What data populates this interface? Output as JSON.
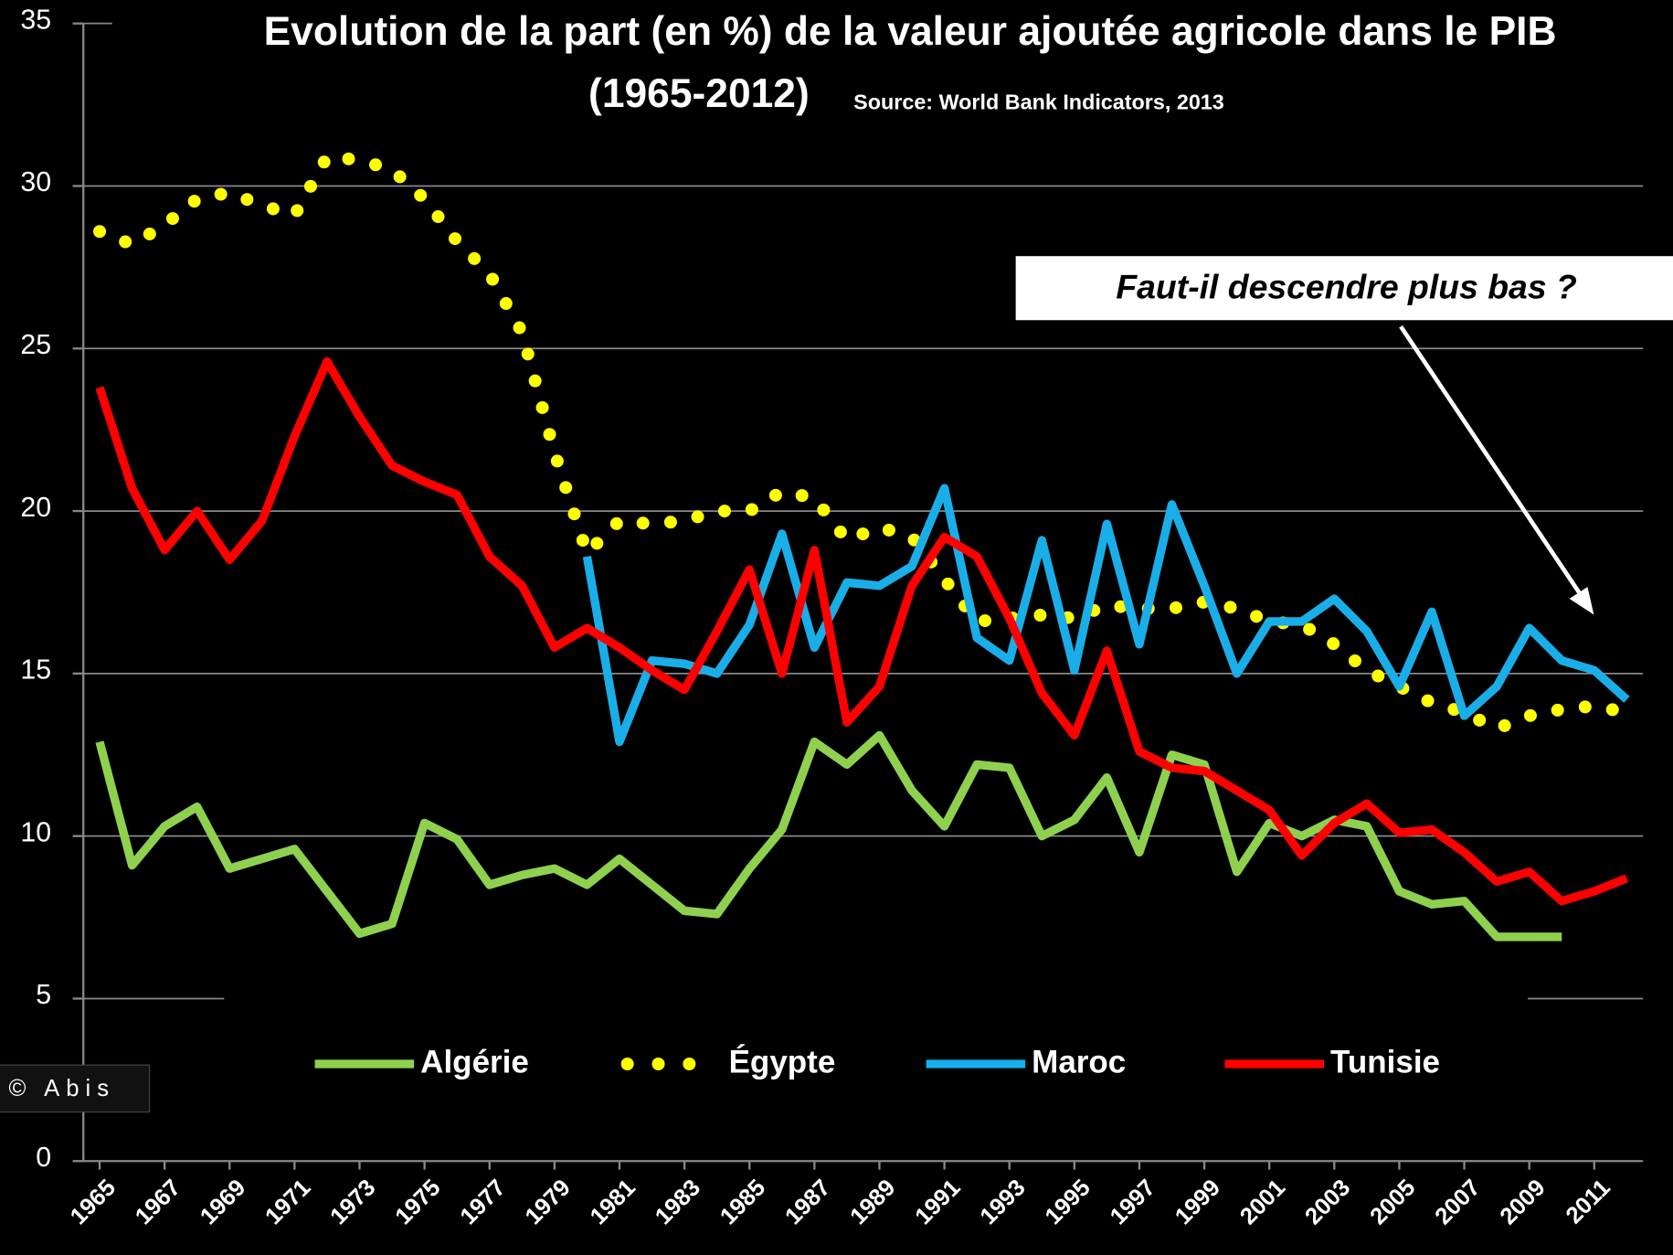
{
  "chart_data": {
    "type": "line",
    "title": [
      "Evolution de la part (en %) de la valeur ajoutée agricole dans le PIB",
      "(1965-2012)"
    ],
    "source": "Source: World Bank Indicators, 2013",
    "annotations": [
      {
        "text": "Faut-il descendre plus bas ?"
      }
    ],
    "watermark": "© Abis",
    "x": [
      1965,
      1966,
      1967,
      1968,
      1969,
      1970,
      1971,
      1972,
      1973,
      1974,
      1975,
      1976,
      1977,
      1978,
      1979,
      1980,
      1981,
      1982,
      1983,
      1984,
      1985,
      1986,
      1987,
      1988,
      1989,
      1990,
      1991,
      1992,
      1993,
      1994,
      1995,
      1996,
      1997,
      1998,
      1999,
      2000,
      2001,
      2002,
      2003,
      2004,
      2005,
      2006,
      2007,
      2008,
      2009,
      2010,
      2011,
      2012
    ],
    "xlim": [
      1964.5,
      2012.5
    ],
    "xticks": [
      1965,
      1967,
      1969,
      1971,
      1973,
      1975,
      1977,
      1979,
      1981,
      1983,
      1985,
      1987,
      1989,
      1991,
      1993,
      1995,
      1997,
      1999,
      2001,
      2003,
      2005,
      2007,
      2009,
      2011
    ],
    "ylim": [
      0,
      35
    ],
    "yticks": [
      0,
      5,
      10,
      15,
      20,
      25,
      30,
      35
    ],
    "grid": true,
    "legend": "bottom",
    "series": [
      {
        "name": "Algérie",
        "color": "#8fd14f",
        "style": "solid",
        "values": [
          12.9,
          9.1,
          10.3,
          10.9,
          9.0,
          9.3,
          9.6,
          8.3,
          7.0,
          7.3,
          10.4,
          9.9,
          8.5,
          8.8,
          9.0,
          8.5,
          9.3,
          8.5,
          7.7,
          7.6,
          9.0,
          10.2,
          12.9,
          12.2,
          13.1,
          11.4,
          10.3,
          12.2,
          12.1,
          10.0,
          10.5,
          11.8,
          9.5,
          12.5,
          12.2,
          8.9,
          10.4,
          10.0,
          10.5,
          10.3,
          8.3,
          7.9,
          8.0,
          6.9,
          6.9,
          6.9,
          null,
          null
        ]
      },
      {
        "name": "Égypte",
        "color": "#ffff00",
        "style": "dotted",
        "values": [
          28.6,
          28.2,
          28.8,
          29.6,
          29.8,
          29.4,
          29.1,
          30.9,
          30.8,
          30.5,
          29.6,
          28.3,
          27.3,
          25.5,
          21.8,
          18.7,
          19.7,
          19.6,
          19.7,
          20.0,
          20.0,
          20.6,
          20.4,
          19.1,
          19.5,
          19.2,
          17.9,
          16.6,
          16.7,
          16.8,
          16.7,
          17.1,
          17.0,
          17.0,
          17.2,
          17.0,
          16.6,
          16.5,
          15.9,
          15.1,
          14.6,
          14.1,
          13.8,
          13.3,
          13.7,
          13.9,
          14.0,
          13.8
        ]
      },
      {
        "name": "Maroc",
        "color": "#1aaee8",
        "style": "solid",
        "values": [
          null,
          null,
          null,
          null,
          null,
          null,
          null,
          null,
          null,
          null,
          null,
          null,
          null,
          null,
          null,
          18.6,
          12.9,
          15.4,
          15.3,
          15.0,
          16.5,
          19.3,
          15.8,
          17.8,
          17.7,
          18.3,
          20.7,
          16.1,
          15.4,
          19.1,
          15.1,
          19.6,
          15.9,
          20.2,
          17.7,
          15.0,
          16.6,
          16.6,
          17.3,
          16.3,
          14.6,
          16.9,
          13.7,
          14.6,
          16.4,
          15.4,
          15.1,
          14.2
        ]
      },
      {
        "name": "Tunisie",
        "color": "#ff0000",
        "style": "solid",
        "values": [
          23.8,
          20.7,
          18.8,
          20.0,
          18.5,
          19.7,
          22.3,
          24.6,
          22.9,
          21.4,
          20.9,
          20.5,
          18.6,
          17.7,
          15.8,
          16.4,
          15.8,
          15.1,
          14.5,
          16.3,
          18.2,
          15.0,
          18.8,
          13.5,
          14.6,
          17.7,
          19.2,
          18.6,
          16.7,
          14.4,
          13.1,
          15.7,
          12.6,
          12.1,
          12.0,
          11.4,
          10.8,
          9.4,
          10.4,
          11.0,
          10.1,
          10.2,
          9.5,
          8.6,
          8.9,
          8.0,
          8.3,
          8.7
        ]
      }
    ]
  }
}
